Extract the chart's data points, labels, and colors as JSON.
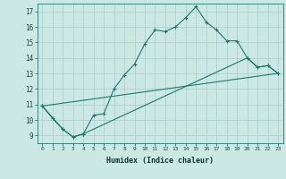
{
  "xlabel": "Humidex (Indice chaleur)",
  "background_color": "#cce8e4",
  "grid_color": "#aaccca",
  "line_color": "#1a7a6e",
  "xlim": [
    -0.5,
    23.5
  ],
  "ylim": [
    8.5,
    17.5
  ],
  "xtick_labels": [
    "0",
    "1",
    "2",
    "3",
    "4",
    "5",
    "6",
    "7",
    "8",
    "9",
    "10",
    "11",
    "12",
    "13",
    "14",
    "15",
    "16",
    "17",
    "18",
    "19",
    "20",
    "21",
    "22",
    "23"
  ],
  "ytick_values": [
    9,
    10,
    11,
    12,
    13,
    14,
    15,
    16,
    17
  ],
  "ytick_labels": [
    "9",
    "10",
    "11",
    "12",
    "13",
    "14",
    "15",
    "16",
    "17"
  ],
  "line1_x": [
    0,
    1,
    2,
    3,
    4,
    5,
    6,
    7,
    8,
    9,
    10,
    11,
    12,
    13,
    14,
    15,
    16,
    17,
    18,
    19,
    20,
    21,
    22,
    23
  ],
  "line1_y": [
    10.9,
    10.1,
    9.4,
    8.9,
    9.1,
    10.3,
    10.4,
    12.0,
    12.9,
    13.6,
    14.9,
    15.8,
    15.7,
    16.0,
    16.6,
    17.3,
    16.3,
    15.8,
    15.1,
    15.1,
    14.0,
    13.4,
    13.5,
    13.0
  ],
  "line2_x": [
    0,
    2,
    3,
    4,
    20,
    21,
    22,
    23
  ],
  "line2_y": [
    10.9,
    9.4,
    8.9,
    9.1,
    14.0,
    13.4,
    13.5,
    13.0
  ],
  "line3_x": [
    0,
    23
  ],
  "line3_y": [
    10.9,
    13.0
  ]
}
